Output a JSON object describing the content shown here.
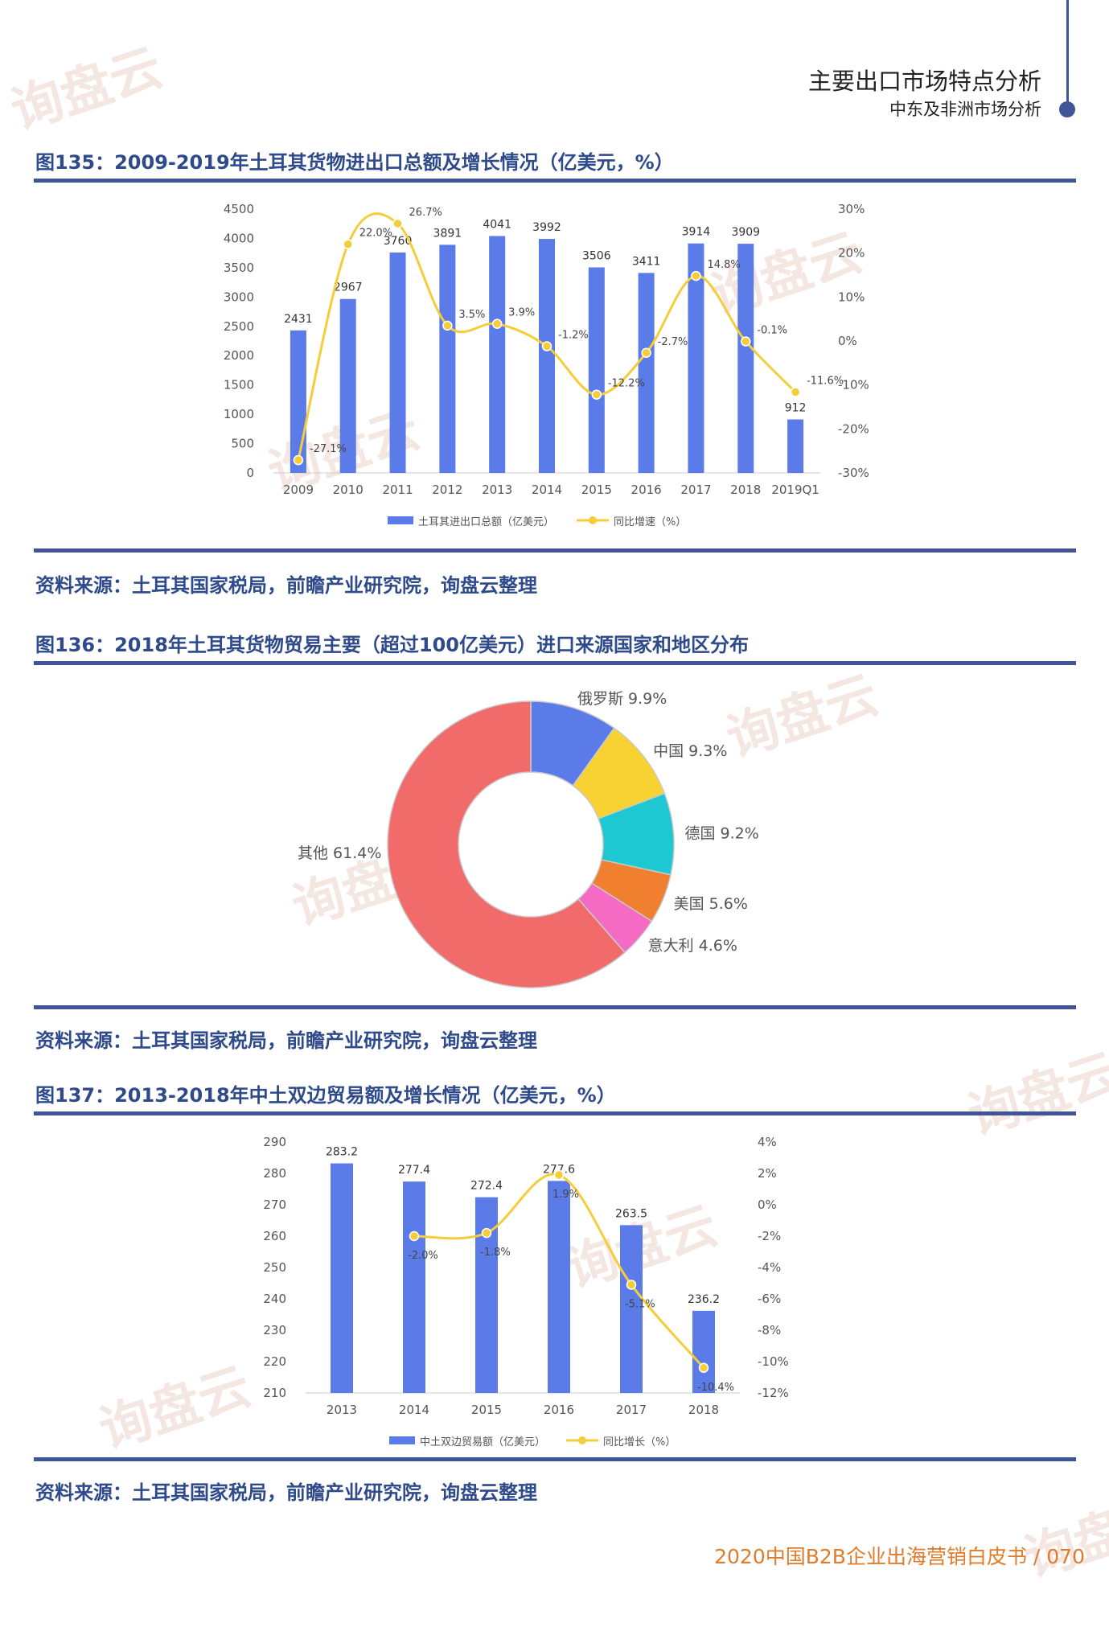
{
  "header": {
    "title": "主要出口市场特点分析",
    "subtitle": "中东及非洲市场分析"
  },
  "figures": {
    "fig135": {
      "title": "图135：2009-2019年土耳其货物进出口总额及增长情况（亿美元，%）"
    },
    "fig136": {
      "title": "图136：2018年土耳其货物贸易主要（超过100亿美元）进口来源国家和地区分布"
    },
    "fig137": {
      "title": "图137：2013-2018年中土双边贸易额及增长情况（亿美元，%）"
    }
  },
  "sources": {
    "s1": "资料来源：土耳其国家税局，前瞻产业研究院，询盘云整理",
    "s2": "资料来源：土耳其国家税局，前瞻产业研究院，询盘云整理",
    "s3": "资料来源：土耳其国家税局，前瞻产业研究院，询盘云整理"
  },
  "footer": {
    "text": "2020中国B2B企业出海营销白皮书 / 070"
  },
  "watermark": {
    "text": "询盘云"
  },
  "colors": {
    "bar": "#5b7be8",
    "line": "#f5cd3a",
    "title": "#2e4a8a",
    "rule": "#3f5597",
    "footer": "#e07b2a"
  },
  "chart_data": [
    {
      "type": "bar",
      "categories": [
        "2009",
        "2010",
        "2011",
        "2012",
        "2013",
        "2014",
        "2015",
        "2016",
        "2017",
        "2018",
        "2019Q1"
      ],
      "series": [
        {
          "name": "土耳其进出口总额（亿美元）",
          "type": "bar",
          "values": [
            2431,
            2967,
            3760,
            3891,
            4041,
            3992,
            3506,
            3411,
            3914,
            3909,
            912
          ],
          "labels": [
            "2431",
            "2967",
            "3760",
            "3891",
            "4041",
            "3992",
            "3506",
            "3411",
            "3914",
            "3909",
            "912"
          ]
        },
        {
          "name": "同比增速（%）",
          "type": "line",
          "axis": "right",
          "values": [
            -27.1,
            22.0,
            26.7,
            3.5,
            3.9,
            -1.2,
            -12.2,
            -2.7,
            14.8,
            -0.1,
            -11.6
          ],
          "labels": [
            "-27.1%",
            "22.0%",
            "26.7%",
            "3.5%",
            "3.9%",
            "-1.2%",
            "-12.2%",
            "-2.7%",
            "14.8%",
            "-0.1%",
            "-11.6%"
          ]
        }
      ],
      "ylim": [
        0,
        4500
      ],
      "yticks": [
        "0",
        "500",
        "1000",
        "1500",
        "2000",
        "2500",
        "3000",
        "3500",
        "4000",
        "4500"
      ],
      "ylim_right": [
        -30,
        30
      ],
      "yticks_right": [
        "-30%",
        "-20%",
        "-10%",
        "0%",
        "10%",
        "20%",
        "30%"
      ],
      "legend": "bottom",
      "grid": false
    },
    {
      "type": "pie",
      "style": "donut",
      "categories": [
        "俄罗斯",
        "中国",
        "德国",
        "美国",
        "意大利",
        "其他"
      ],
      "values": [
        9.9,
        9.3,
        9.2,
        5.6,
        4.6,
        61.4
      ],
      "labels": [
        "俄罗斯 9.9%",
        "中国 9.3%",
        "德国 9.2%",
        "美国 5.6%",
        "意大利 4.6%",
        "其他 61.4%"
      ],
      "colors": [
        "#5b7be8",
        "#f7d232",
        "#1dc8d3",
        "#f08030",
        "#f56bc4",
        "#f26b6b"
      ]
    },
    {
      "type": "bar",
      "categories": [
        "2013",
        "2014",
        "2015",
        "2016",
        "2017",
        "2018"
      ],
      "series": [
        {
          "name": "中土双边贸易额（亿美元）",
          "type": "bar",
          "values": [
            283.2,
            277.4,
            272.4,
            277.6,
            263.5,
            236.2
          ],
          "labels": [
            "283.2",
            "277.4",
            "272.4",
            "277.6",
            "263.5",
            "236.2"
          ]
        },
        {
          "name": "同比增长（%）",
          "type": "line",
          "axis": "right",
          "values": [
            null,
            -2.0,
            -1.8,
            1.9,
            -5.1,
            -10.4
          ],
          "labels": [
            "",
            "-2.0%",
            "-1.8%",
            "1.9%",
            "-5.1%",
            "-10.4%"
          ]
        }
      ],
      "ylim": [
        210,
        290
      ],
      "yticks": [
        "210",
        "220",
        "230",
        "240",
        "250",
        "260",
        "270",
        "280",
        "290"
      ],
      "ylim_right": [
        -12,
        4
      ],
      "yticks_right": [
        "-12%",
        "-10%",
        "-8%",
        "-6%",
        "-4%",
        "-2%",
        "0%",
        "2%",
        "4%"
      ],
      "legend": "bottom",
      "grid": false
    }
  ]
}
